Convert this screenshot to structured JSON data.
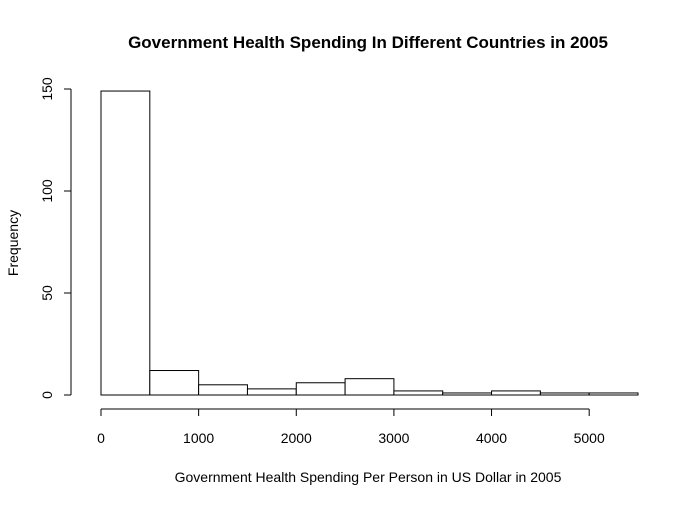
{
  "chart_data": {
    "type": "bar",
    "title": "Government Health Spending In Different Countries in 2005",
    "xlabel": "Government Health Spending Per Person in US Dollar in 2005",
    "ylabel": "Frequency",
    "bin_edges": [
      0,
      500,
      1000,
      1500,
      2000,
      2500,
      3000,
      3500,
      4000,
      4500,
      5000,
      5500
    ],
    "values": [
      149,
      12,
      5,
      3,
      6,
      8,
      2,
      1,
      2,
      1,
      1
    ],
    "xlim": [
      0,
      5500
    ],
    "ylim": [
      0,
      150
    ],
    "x_ticks": [
      0,
      1000,
      2000,
      3000,
      4000,
      5000
    ],
    "x_tick_labels": [
      "0",
      "1000",
      "2000",
      "3000",
      "4000",
      "5000"
    ],
    "y_ticks": [
      0,
      50,
      100,
      150
    ],
    "y_tick_labels": [
      "0",
      "50",
      "100",
      "150"
    ],
    "grid": false,
    "legend": "none",
    "bar_fill": "#ffffff",
    "bar_stroke": "#000000"
  }
}
